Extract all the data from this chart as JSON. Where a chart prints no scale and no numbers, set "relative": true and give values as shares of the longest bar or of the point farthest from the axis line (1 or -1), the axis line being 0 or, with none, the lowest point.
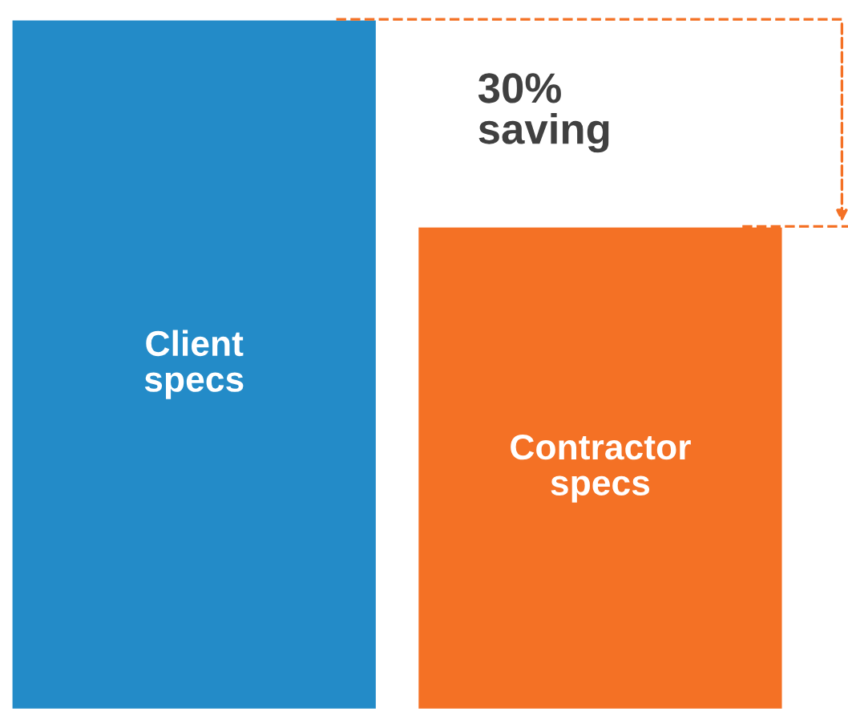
{
  "chart_data": {
    "type": "bar",
    "relative": true,
    "categories": [
      "Client specs",
      "Contractor specs"
    ],
    "values": [
      1,
      0.7
    ],
    "colors": [
      "#238bc8",
      "#f47125"
    ],
    "annotations": [
      "30%\nsaving"
    ]
  }
}
